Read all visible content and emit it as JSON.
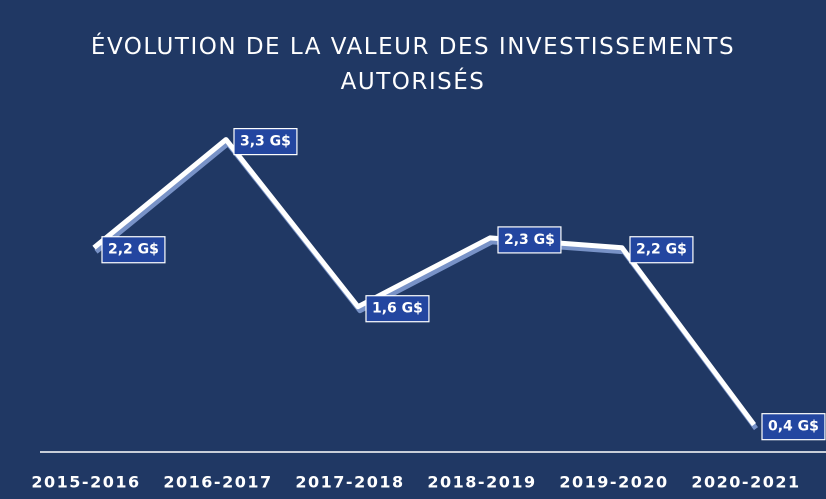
{
  "chart_data": {
    "type": "line",
    "title": "ÉVOLUTION DE LA VALEUR DES INVESTISSEMENTS AUTORISÉS",
    "categories": [
      "2015-2016",
      "2016-2017",
      "2017-2018",
      "2018-2019",
      "2019-2020",
      "2020-2021"
    ],
    "series": [
      {
        "name": null,
        "color": "#ffffff",
        "values": [
          2.2,
          3.3,
          1.6,
          2.3,
          2.2,
          0.4
        ],
        "value_labels": [
          "2,2 G$",
          "3,3 G$",
          "1,6 G$",
          "2,3 G$",
          "2,2 G$",
          "0,4 G$"
        ]
      }
    ]
  }
}
